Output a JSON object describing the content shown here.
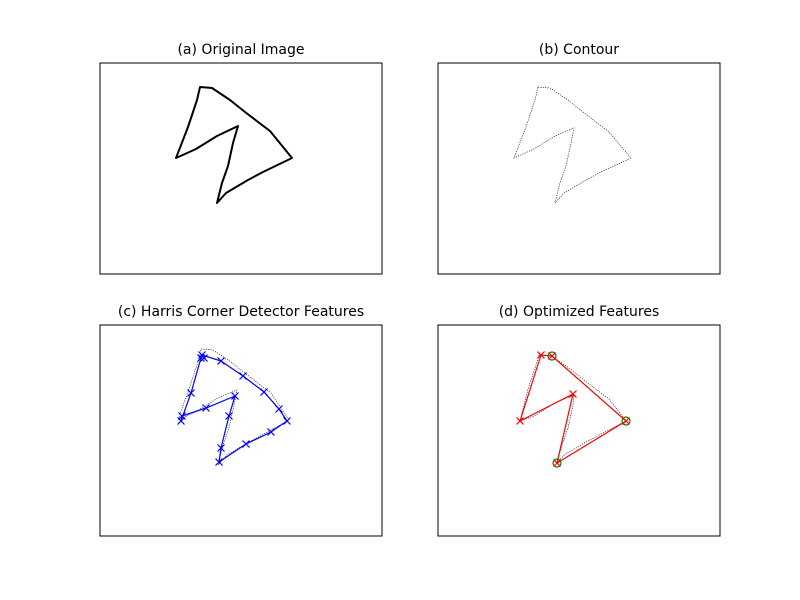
{
  "panels": [
    {
      "id": "a",
      "title": "(a) Original Image"
    },
    {
      "id": "b",
      "title": "(b) Contour"
    },
    {
      "id": "c",
      "title": "(c) Harris Corner Detector Features"
    },
    {
      "id": "d",
      "title": "(d) Optimized Features"
    }
  ],
  "colors": {
    "outline": "#000000",
    "harris": "#0000ff",
    "optimized": "#ff0000",
    "marker_circle": "#008000",
    "axes_frame": "#000000"
  },
  "markers": {
    "harris": "x",
    "optimized": "x",
    "corner": "circle"
  }
}
